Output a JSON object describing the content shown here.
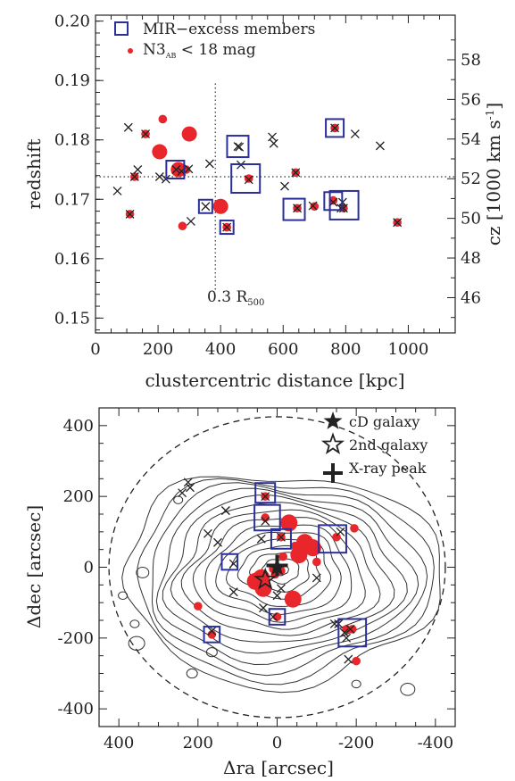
{
  "chart_data": [
    {
      "type": "scatter",
      "title": "",
      "xlabel": "clustercentric distance [kpc]",
      "ylabel": "redshift",
      "y2label": "cz [1000 km s",
      "y2label_sup": "-1",
      "y2label_end": "]",
      "xlim": [
        0,
        1150
      ],
      "ylim": [
        0.1475,
        0.201
      ],
      "y2lim": [
        44.22,
        60.25
      ],
      "x_ticks": [
        0,
        200,
        400,
        600,
        800,
        1000
      ],
      "y_ticks": [
        "0.15",
        "0.16",
        "0.17",
        "0.18",
        "0.19",
        "0.20"
      ],
      "y2_ticks": [
        46,
        48,
        50,
        52,
        54,
        56,
        58
      ],
      "grid": false,
      "legend_position": "top-left",
      "legend": [
        {
          "label": "MIR−excess members",
          "marker": "open-square"
        },
        {
          "label": "N3",
          "sub": "AB",
          "rest": " < 18 mag",
          "marker": "dot"
        }
      ],
      "reference_lines": {
        "vertical_x": 383,
        "horizontal_y": 0.1738,
        "annotation": "0.3 R",
        "annotation_sub": "500"
      },
      "series": [
        {
          "marker": "cross",
          "points": [
            [
              70,
              0.1714
            ],
            [
              105,
              0.1821
            ],
            [
              135,
              0.175
            ],
            [
              205,
              0.1738
            ],
            [
              225,
              0.1734
            ],
            [
              305,
              0.1663
            ],
            [
              365,
              0.176
            ],
            [
              455,
              0.1789
            ],
            [
              465,
              0.1758
            ],
            [
              565,
              0.1805
            ],
            [
              570,
              0.1794
            ],
            [
              605,
              0.1722
            ],
            [
              645,
              0.1685
            ],
            [
              765,
              0.182
            ],
            [
              785,
              0.1685
            ],
            [
              830,
              0.181
            ],
            [
              910,
              0.179
            ],
            [
              965,
              0.1661
            ],
            [
              160,
              0.181
            ],
            [
              125,
              0.1738
            ],
            [
              110,
              0.1675
            ],
            [
              258,
              0.175
            ],
            [
              352,
              0.1688
            ],
            [
              420,
              0.1653
            ],
            [
              460,
              0.1788
            ],
            [
              490,
              0.1733
            ],
            [
              640,
              0.1745
            ],
            [
              695,
              0.1689
            ],
            [
              760,
              0.1695
            ],
            [
              790,
              0.1695
            ],
            [
              793,
              0.1685
            ],
            [
              298,
              0.1751
            ],
            [
              275,
              0.1747
            ]
          ]
        },
        {
          "marker": "dot",
          "points": [
            [
              215,
              0.1835
            ],
            [
              160,
              0.181
            ],
            [
              125,
              0.1738
            ],
            [
              110,
              0.1675
            ],
            [
              290,
              0.175
            ],
            [
              278,
              0.1655
            ],
            [
              420,
              0.1653
            ],
            [
              490,
              0.1735
            ],
            [
              640,
              0.1745
            ],
            [
              700,
              0.1688
            ],
            [
              645,
              0.1685
            ],
            [
              765,
              0.182
            ],
            [
              760,
              0.1698
            ],
            [
              793,
              0.1685
            ],
            [
              965,
              0.1661
            ]
          ],
          "large": [
            [
              205,
              0.178
            ],
            [
              300,
              0.181
            ],
            [
              265,
              0.175
            ],
            [
              400,
              0.1688
            ]
          ]
        },
        {
          "marker": "open-square",
          "points": [
            [
              255,
              0.175
            ],
            [
              352,
              0.1688
            ],
            [
              420,
              0.1653
            ],
            [
              455,
              0.1789
            ],
            [
              480,
              0.1735
            ],
            [
              635,
              0.1683
            ],
            [
              765,
              0.182
            ],
            [
              760,
              0.1697
            ],
            [
              795,
              0.169
            ]
          ],
          "sizes": [
            1.0,
            0.75,
            0.75,
            1.2,
            1.6,
            1.2,
            1.0,
            1.0,
            1.6
          ]
        }
      ]
    },
    {
      "type": "scatter",
      "title": "",
      "xlabel": "Δra [arcsec]",
      "ylabel": "Δdec [arcsec]",
      "xlim": [
        450,
        -450
      ],
      "ylim": [
        -450,
        450
      ],
      "x_ticks": [
        400,
        200,
        0,
        -200,
        -400
      ],
      "y_ticks": [
        -400,
        -200,
        0,
        200,
        400
      ],
      "grid": false,
      "legend_position": "top-right",
      "legend": [
        {
          "label": "cD galaxy",
          "marker": "filled-star"
        },
        {
          "label": "2nd galaxy",
          "marker": "open-star"
        },
        {
          "label": "X-ray peak",
          "marker": "plus"
        }
      ],
      "circle_radius": 425,
      "special_points": {
        "cd_galaxy": [
          0,
          0
        ],
        "second_galaxy": [
          30,
          -35
        ],
        "xray_peak": [
          0,
          5
        ]
      },
      "series": [
        {
          "marker": "cross",
          "points": [
            [
              225,
              240
            ],
            [
              240,
              210
            ],
            [
              220,
              225
            ],
            [
              130,
              160
            ],
            [
              175,
              95
            ],
            [
              150,
              70
            ],
            [
              110,
              10
            ],
            [
              110,
              -70
            ],
            [
              35,
              -115
            ],
            [
              -145,
              -160
            ],
            [
              -180,
              -260
            ],
            [
              -155,
              -160
            ],
            [
              -100,
              -30
            ],
            [
              40,
              80
            ],
            [
              -10,
              -60
            ],
            [
              0,
              -80
            ],
            [
              -175,
              -200
            ],
            [
              -185,
              -175
            ],
            [
              -170,
              -185
            ],
            [
              130,
              160
            ],
            [
              165,
              -180
            ],
            [
              30,
              200
            ],
            [
              30,
              130
            ],
            [
              -10,
              85
            ],
            [
              -160,
              100
            ],
            [
              10,
              -140
            ]
          ]
        },
        {
          "marker": "dot",
          "points": [
            [
              30,
              200
            ],
            [
              30,
              140
            ],
            [
              -10,
              85
            ],
            [
              -150,
              85
            ],
            [
              -195,
              110
            ],
            [
              -190,
              -175
            ],
            [
              -175,
              -175
            ],
            [
              -200,
              -265
            ],
            [
              -100,
              15
            ],
            [
              0,
              -140
            ],
            [
              165,
              -190
            ],
            [
              200,
              -110
            ],
            [
              5,
              -20
            ],
            [
              -10,
              -10
            ],
            [
              10,
              -5
            ],
            [
              -45,
              60
            ],
            [
              -60,
              40
            ],
            [
              -15,
              30
            ]
          ],
          "large": [
            [
              -30,
              125
            ],
            [
              -70,
              70
            ],
            [
              -90,
              55
            ],
            [
              -55,
              35
            ],
            [
              40,
              -30
            ],
            [
              -40,
              -90
            ],
            [
              55,
              -40
            ],
            [
              35,
              -60
            ]
          ]
        },
        {
          "marker": "open-square",
          "points": [
            [
              30,
              210
            ],
            [
              25,
              140
            ],
            [
              -10,
              80
            ],
            [
              -140,
              80
            ],
            [
              -190,
              -185
            ],
            [
              120,
              15
            ],
            [
              0,
              -140
            ],
            [
              165,
              -190
            ]
          ],
          "sizes": [
            1.0,
            1.3,
            1.0,
            1.4,
            1.4,
            0.8,
            0.8,
            0.8
          ]
        }
      ]
    }
  ]
}
